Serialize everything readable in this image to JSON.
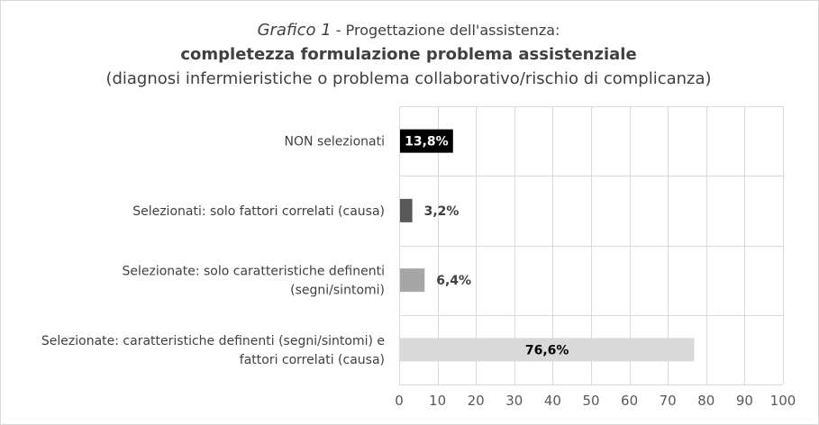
{
  "chart_data": {
    "type": "bar",
    "orientation": "horizontal",
    "title": {
      "italic": "Grafico 1",
      "rest": " - Progettazione dell'assistenza:",
      "bold": "completezza formulazione problema assistenziale",
      "sub": "(diagnosi infermieristiche o problema collaborativo/rischio di complicanza)"
    },
    "categories": [
      [
        "NON selezionati"
      ],
      [
        "Selezionati: solo fattori correlati (causa)"
      ],
      [
        "Selezionate: solo caratteristiche definenti",
        "(segni/sintomi)"
      ],
      [
        "Selezionate: caratteristiche definenti (segni/sintomi) e",
        "fattori correlati (causa)"
      ]
    ],
    "values": [
      13.8,
      3.2,
      6.4,
      76.6
    ],
    "data_labels": [
      "13,8%",
      "3,2%",
      "6,4%",
      "76,6%"
    ],
    "bar_colors": [
      "#000000",
      "#595959",
      "#a6a6a6",
      "#d9d9d9"
    ],
    "label_colors": [
      "#ffffff",
      "#404040",
      "#404040",
      "#000000"
    ],
    "label_position": [
      "inside",
      "outside",
      "outside",
      "inside"
    ],
    "xlim": [
      0,
      100
    ],
    "xticks": [
      0,
      10,
      20,
      30,
      40,
      50,
      60,
      70,
      80,
      90,
      100
    ],
    "grid": true,
    "legend": "none",
    "xlabel": "",
    "ylabel": ""
  }
}
